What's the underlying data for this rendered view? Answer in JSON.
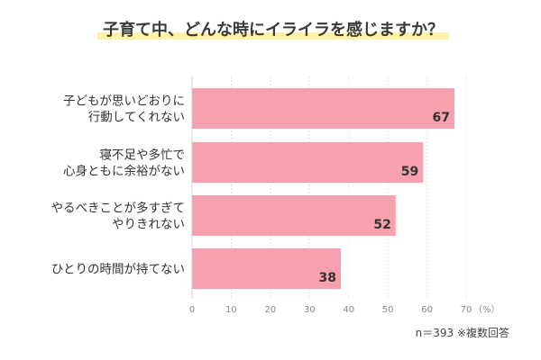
{
  "chart_data": {
    "type": "bar",
    "orientation": "horizontal",
    "title": "子育て中、どんな時にイライラを感じますか？",
    "categories": [
      [
        "子どもが思いどおりに",
        "行動してくれない"
      ],
      [
        "寝不足や多忙で",
        "心身ともに余裕がない"
      ],
      [
        "やるべきことが多すぎて",
        "やりきれない"
      ],
      [
        "ひとりの時間が持てない"
      ]
    ],
    "values": [
      67,
      59,
      52,
      38
    ],
    "xlim": [
      0,
      70
    ],
    "x_ticks": [
      "0",
      "10",
      "20",
      "30",
      "40",
      "50",
      "60",
      "70"
    ],
    "unit": "（%）",
    "grid": true,
    "note": "n＝393 ※複数回答"
  },
  "colors": {
    "bar": "#f8a1ae",
    "title_underline": "#fff2a8",
    "grid": "#d9d9d9"
  }
}
